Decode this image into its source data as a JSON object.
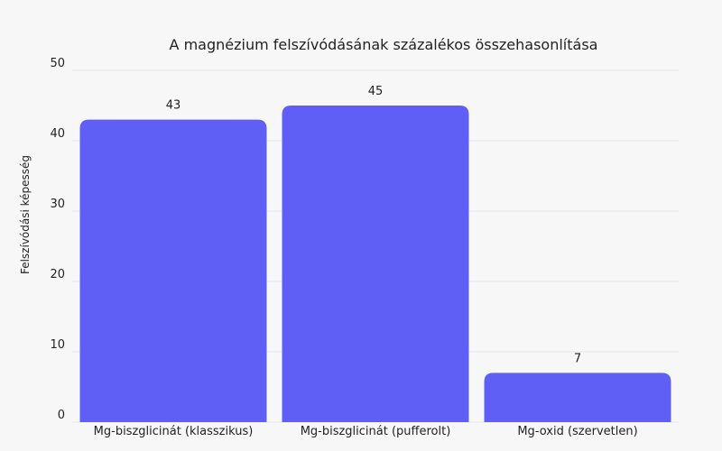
{
  "chart_data": {
    "type": "bar",
    "title": "A magnézium felszívódásának százalékos összehasonlítása",
    "xlabel": "",
    "ylabel": "Felszívódási képesség",
    "categories": [
      "Mg-biszglicinát (klasszikus)",
      "Mg-biszglicinát (pufferolt)",
      "Mg-oxid (szervetlen)"
    ],
    "values": [
      43,
      45,
      7
    ],
    "data_labels": [
      "43",
      "45",
      "7"
    ],
    "ylim": [
      0,
      50
    ],
    "yticks": [
      0,
      10,
      20,
      30,
      40,
      50
    ],
    "grid": true,
    "colors": {
      "bar": "#5f5ff6",
      "grid": "#e6e6e8",
      "background": "#f7f7f8"
    }
  }
}
